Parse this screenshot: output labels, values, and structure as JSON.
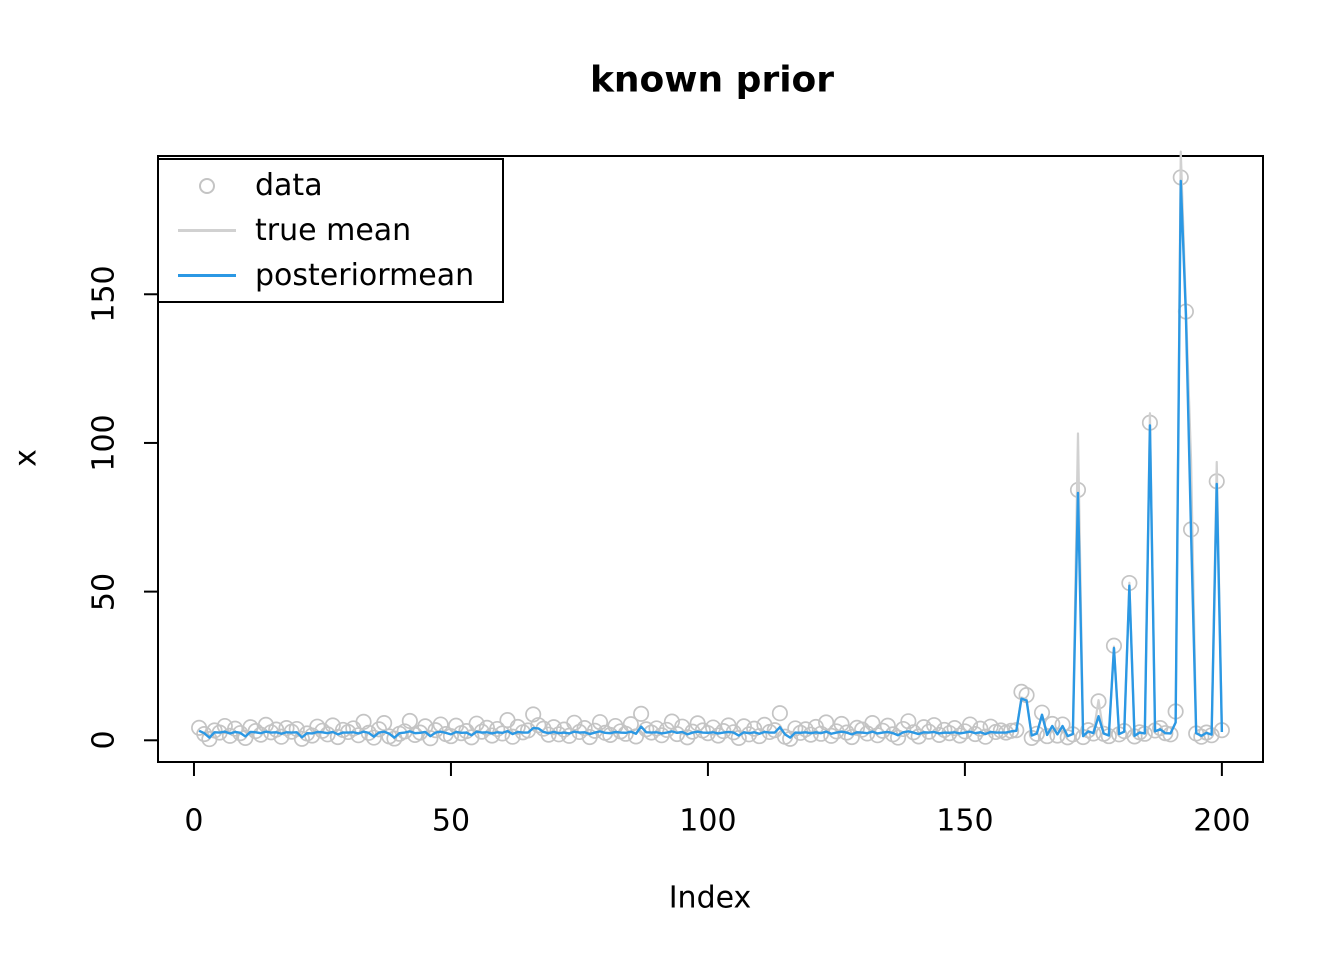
{
  "title": "known prior",
  "x_axis": {
    "label": "Index",
    "ticks": [
      0,
      50,
      100,
      150,
      200
    ]
  },
  "y_axis": {
    "label": "x",
    "ticks": [
      0,
      50,
      100,
      150
    ]
  },
  "legend": {
    "position": "topleft",
    "items": [
      {
        "label": "data",
        "symbol": "circle",
        "color": "#c4c4c4"
      },
      {
        "label": "true mean",
        "symbol": "line",
        "color": "#d1d1d1"
      },
      {
        "label": "posteriormean",
        "symbol": "line",
        "color": "#2b98e4"
      }
    ]
  },
  "colors": {
    "background": "#ffffff",
    "box_border": "#000000",
    "data_points": "#c4c4c4",
    "true_mean": "#d1d1d1",
    "posterior_mean": "#2b98e4",
    "text": "#000000"
  },
  "chart_data": {
    "type": "line",
    "title": "known prior",
    "xlabel": "Index",
    "ylabel": "x",
    "xlim": [
      -7,
      208
    ],
    "ylim": [
      -7.3,
      196.5
    ],
    "x_ticks": [
      0,
      50,
      100,
      150,
      200
    ],
    "y_ticks": [
      0,
      50,
      100,
      150
    ],
    "grid": false,
    "legend_position": "topleft",
    "x_start": 1,
    "n_points": 200,
    "series": [
      {
        "name": "data",
        "type": "scatter",
        "color": "#c4c4c4",
        "values": [
          4.2,
          2.1,
          0.4,
          3.3,
          2.6,
          4.8,
          1.5,
          3.9,
          2.4,
          0.8,
          4.4,
          3.1,
          1.9,
          5.2,
          2.7,
          3.6,
          1.2,
          4.1,
          2.9,
          3.8,
          0.5,
          2.3,
          1.6,
          4.6,
          3.2,
          2.0,
          5.0,
          1.1,
          3.5,
          2.8,
          4.0,
          1.7,
          6.2,
          2.5,
          0.9,
          3.7,
          5.8,
          1.3,
          0.6,
          2.2,
          3.0,
          6.5,
          1.8,
          2.6,
          4.7,
          0.7,
          3.4,
          5.3,
          2.1,
          1.4,
          4.9,
          2.4,
          3.1,
          1.0,
          5.6,
          2.9,
          4.2,
          1.6,
          3.8,
          2.3,
          6.8,
          1.2,
          4.5,
          2.7,
          3.3,
          8.7,
          5.1,
          3.9,
          1.9,
          4.4,
          2.0,
          3.6,
          1.5,
          5.9,
          2.8,
          4.1,
          1.1,
          3.2,
          6.1,
          2.5,
          1.8,
          4.8,
          3.0,
          2.2,
          5.4,
          1.3,
          8.9,
          3.7,
          2.6,
          4.0,
          1.7,
          3.5,
          6.3,
          2.1,
          4.6,
          1.0,
          2.9,
          5.7,
          3.3,
          2.4,
          4.3,
          1.6,
          3.1,
          5.0,
          2.7,
          0.8,
          4.7,
          2.0,
          3.9,
          1.4,
          5.2,
          2.8,
          3.4,
          9.1,
          1.2,
          0.5,
          4.0,
          2.5,
          3.7,
          1.9,
          4.5,
          2.2,
          6.0,
          1.5,
          3.0,
          5.5,
          2.6,
          1.1,
          4.2,
          3.6,
          2.3,
          5.8,
          1.7,
          3.2,
          4.9,
          2.0,
          0.9,
          3.8,
          6.4,
          2.7,
          1.3,
          4.4,
          2.9,
          5.1,
          1.8,
          3.5,
          2.4,
          4.1,
          1.6,
          3.0,
          5.3,
          2.1,
          3.9,
          1.2,
          4.6,
          2.8,
          3.3,
          2.6,
          3.2,
          3.4,
          16.3,
          15.2,
          0.8,
          2.2,
          9.3,
          1.4,
          5.5,
          1.6,
          5.3,
          1.0,
          2.0,
          84.2,
          1.1,
          3.4,
          2.3,
          13.1,
          2.2,
          1.4,
          31.8,
          2.0,
          3.1,
          52.9,
          1.3,
          2.7,
          2.2,
          106.8,
          3.3,
          4.1,
          2.4,
          2.0,
          9.7,
          189.3,
          144.2,
          70.9,
          2.3,
          1.2,
          2.6,
          1.7,
          87.1,
          3.4
        ]
      },
      {
        "name": "true mean",
        "type": "line",
        "color": "#d1d1d1",
        "values": [
          3.2,
          2.4,
          0.9,
          2.7,
          2.6,
          2.9,
          2.3,
          2.8,
          2.5,
          1.3,
          2.8,
          2.7,
          2.4,
          2.9,
          2.6,
          2.7,
          2.2,
          2.7,
          2.6,
          2.7,
          1.0,
          2.4,
          2.3,
          2.8,
          2.7,
          2.4,
          2.8,
          2.0,
          2.6,
          2.6,
          2.7,
          2.3,
          2.9,
          2.5,
          1.2,
          2.6,
          2.9,
          2.2,
          0.9,
          2.4,
          2.6,
          3.0,
          2.4,
          2.5,
          2.8,
          1.4,
          2.6,
          2.9,
          2.5,
          2.0,
          2.8,
          2.5,
          2.6,
          1.7,
          2.9,
          2.6,
          2.7,
          2.3,
          2.7,
          2.5,
          3.1,
          2.1,
          2.8,
          2.6,
          2.6,
          4.1,
          4.0,
          2.8,
          2.4,
          2.8,
          2.4,
          2.6,
          2.3,
          2.9,
          2.6,
          2.7,
          2.1,
          2.6,
          3.0,
          2.5,
          2.4,
          2.8,
          2.6,
          2.5,
          2.9,
          2.2,
          4.6,
          2.7,
          2.6,
          2.7,
          2.3,
          2.6,
          3.0,
          2.5,
          2.8,
          2.0,
          2.6,
          2.9,
          2.6,
          2.5,
          2.7,
          2.3,
          2.6,
          2.8,
          2.6,
          1.6,
          2.7,
          2.4,
          2.7,
          2.2,
          2.8,
          2.6,
          2.6,
          4.4,
          2.0,
          0.9,
          2.6,
          2.5,
          2.7,
          2.4,
          2.7,
          2.4,
          2.9,
          2.2,
          2.6,
          2.9,
          2.6,
          2.0,
          2.7,
          2.6,
          2.4,
          2.9,
          2.3,
          2.6,
          2.8,
          2.4,
          1.7,
          2.7,
          3.0,
          2.6,
          2.1,
          2.7,
          2.6,
          2.8,
          2.3,
          2.6,
          2.5,
          2.7,
          2.3,
          2.6,
          2.9,
          2.4,
          2.7,
          2.1,
          2.8,
          2.6,
          2.6,
          2.6,
          3.0,
          3.2,
          14.4,
          13.8,
          1.6,
          2.3,
          8.6,
          1.8,
          4.8,
          2.0,
          4.8,
          1.4,
          2.1,
          103.2,
          1.4,
          3.0,
          2.4,
          13.5,
          2.3,
          1.6,
          31.5,
          2.1,
          2.9,
          53.0,
          1.5,
          2.6,
          2.3,
          110.0,
          3.0,
          3.7,
          2.4,
          2.3,
          6.0,
          198.0,
          146.0,
          94.3,
          2.4,
          1.5,
          2.5,
          1.9,
          93.6,
          2.8
        ]
      },
      {
        "name": "posteriormean",
        "type": "line",
        "color": "#2b98e4",
        "values": [
          3.2,
          2.4,
          0.9,
          2.7,
          2.6,
          2.9,
          2.3,
          2.8,
          2.5,
          1.3,
          2.8,
          2.7,
          2.4,
          2.9,
          2.6,
          2.7,
          2.2,
          2.7,
          2.6,
          2.7,
          1.0,
          2.4,
          2.3,
          2.8,
          2.7,
          2.4,
          2.8,
          2.0,
          2.6,
          2.6,
          2.7,
          2.3,
          2.9,
          2.5,
          1.2,
          2.6,
          2.9,
          2.2,
          0.9,
          2.4,
          2.6,
          3.0,
          2.4,
          2.5,
          2.8,
          1.4,
          2.6,
          2.9,
          2.5,
          2.0,
          2.8,
          2.5,
          2.6,
          1.7,
          2.9,
          2.6,
          2.7,
          2.3,
          2.7,
          2.5,
          3.1,
          2.1,
          2.8,
          2.6,
          2.6,
          4.1,
          4.0,
          2.8,
          2.4,
          2.8,
          2.4,
          2.6,
          2.3,
          2.9,
          2.6,
          2.7,
          2.1,
          2.6,
          3.0,
          2.5,
          2.4,
          2.8,
          2.6,
          2.5,
          2.9,
          2.2,
          4.6,
          2.7,
          2.6,
          2.7,
          2.3,
          2.6,
          3.0,
          2.5,
          2.8,
          2.0,
          2.6,
          2.9,
          2.6,
          2.5,
          2.7,
          2.3,
          2.6,
          2.8,
          2.6,
          1.6,
          2.7,
          2.4,
          2.7,
          2.2,
          2.8,
          2.6,
          2.6,
          4.4,
          2.0,
          0.9,
          2.6,
          2.5,
          2.7,
          2.4,
          2.7,
          2.4,
          2.9,
          2.2,
          2.6,
          2.9,
          2.6,
          2.0,
          2.7,
          2.6,
          2.4,
          2.9,
          2.3,
          2.6,
          2.8,
          2.4,
          1.7,
          2.7,
          3.0,
          2.6,
          2.1,
          2.7,
          2.6,
          2.8,
          2.3,
          2.6,
          2.5,
          2.7,
          2.3,
          2.6,
          2.9,
          2.4,
          2.7,
          2.1,
          2.8,
          2.6,
          2.6,
          2.6,
          3.0,
          3.2,
          14.0,
          13.4,
          1.6,
          2.3,
          8.6,
          1.8,
          4.8,
          2.0,
          4.8,
          1.4,
          2.1,
          83.2,
          1.4,
          3.0,
          2.4,
          8.1,
          2.3,
          1.6,
          31.0,
          2.1,
          2.9,
          52.0,
          1.5,
          2.6,
          2.3,
          105.9,
          3.0,
          3.7,
          2.4,
          2.3,
          6.0,
          188.1,
          143.0,
          70.0,
          2.4,
          1.5,
          2.5,
          1.9,
          86.2,
          2.8
        ]
      }
    ]
  }
}
